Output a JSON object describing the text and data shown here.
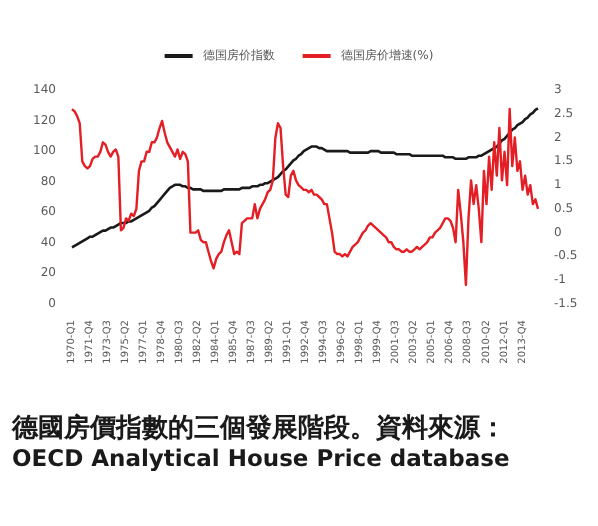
{
  "chart_data": {
    "type": "line",
    "legend": "top",
    "grid": false,
    "marker": "none",
    "line_style": "solid",
    "categories": [
      "1970-Q1",
      null,
      null,
      null,
      null,
      null,
      null,
      "1971-Q4",
      null,
      null,
      null,
      null,
      null,
      null,
      "1973-Q3",
      null,
      null,
      null,
      null,
      null,
      null,
      "1975-Q2",
      null,
      null,
      null,
      null,
      null,
      null,
      "1977-Q1",
      null,
      null,
      null,
      null,
      null,
      null,
      "1978-Q4",
      null,
      null,
      null,
      null,
      null,
      null,
      "1980-Q3",
      null,
      null,
      null,
      null,
      null,
      null,
      "1982-Q2",
      null,
      null,
      null,
      null,
      null,
      null,
      "1984-Q1",
      null,
      null,
      null,
      null,
      null,
      null,
      "1985-Q4",
      null,
      null,
      null,
      null,
      null,
      null,
      "1987-Q3",
      null,
      null,
      null,
      null,
      null,
      null,
      "1989-Q2",
      null,
      null,
      null,
      null,
      null,
      null,
      "1991-Q1",
      null,
      null,
      null,
      null,
      null,
      null,
      "1992-Q4",
      null,
      null,
      null,
      null,
      null,
      null,
      "1994-Q3",
      null,
      null,
      null,
      null,
      null,
      null,
      "1996-Q2",
      null,
      null,
      null,
      null,
      null,
      null,
      "1998-Q1",
      null,
      null,
      null,
      null,
      null,
      null,
      "1999-Q4",
      null,
      null,
      null,
      null,
      null,
      null,
      "2001-Q3",
      null,
      null,
      null,
      null,
      null,
      null,
      "2003-Q2",
      null,
      null,
      null,
      null,
      null,
      null,
      "2005-Q1",
      null,
      null,
      null,
      null,
      null,
      null,
      "2006-Q4",
      null,
      null,
      null,
      null,
      null,
      null,
      "2008-Q3",
      null,
      null,
      null,
      null,
      null,
      null,
      "2010-Q2",
      null,
      null,
      null,
      null,
      null,
      null,
      "2012-Q1",
      null,
      null,
      null,
      null,
      null,
      null,
      "2013-Q4",
      null,
      null,
      null,
      null,
      null,
      null
    ],
    "ylim": [
      0,
      140
    ],
    "yticks": [
      0,
      20,
      40,
      60,
      80,
      100,
      120,
      140
    ],
    "y2lim": [
      -1.5,
      3
    ],
    "y2ticks": [
      -1.5,
      -1,
      -0.5,
      0,
      0.5,
      1,
      1.5,
      2,
      2.5,
      3
    ],
    "series": [
      {
        "name": "德国房价指数",
        "color": "#1a1a1a",
        "values": [
          37,
          38,
          39,
          40,
          41,
          42,
          43,
          44,
          44,
          45,
          46,
          47,
          48,
          48,
          49,
          50,
          50,
          51,
          52,
          53,
          53,
          53,
          54,
          54,
          55,
          56,
          57,
          58,
          59,
          60,
          61,
          63,
          64,
          66,
          68,
          70,
          72,
          74,
          76,
          77,
          78,
          78,
          78,
          77,
          77,
          76,
          76,
          75,
          75,
          75,
          75,
          74,
          74,
          74,
          74,
          74,
          74,
          74,
          74,
          75,
          75,
          75,
          75,
          75,
          75,
          75,
          76,
          76,
          76,
          76,
          77,
          77,
          77,
          78,
          78,
          79,
          79,
          80,
          81,
          82,
          83,
          85,
          87,
          88,
          90,
          92,
          94,
          95,
          97,
          98,
          100,
          101,
          102,
          103,
          103,
          103,
          102,
          102,
          101,
          100,
          100,
          100,
          100,
          100,
          100,
          100,
          100,
          100,
          99,
          99,
          99,
          99,
          99,
          99,
          99,
          99,
          100,
          100,
          100,
          100,
          99,
          99,
          99,
          99,
          99,
          99,
          98,
          98,
          98,
          98,
          98,
          98,
          97,
          97,
          97,
          97,
          97,
          97,
          97,
          97,
          97,
          97,
          97,
          97,
          97,
          96,
          96,
          96,
          96,
          95,
          95,
          95,
          95,
          95,
          96,
          96,
          96,
          96,
          97,
          97,
          98,
          99,
          100,
          101,
          102,
          103,
          105,
          107,
          108,
          110,
          112,
          114,
          115,
          117,
          118,
          119,
          121,
          122,
          124,
          125,
          127,
          128
        ]
      },
      {
        "name": "德国房价增速(%)",
        "color": "#e31e24",
        "axis": "y2",
        "values": [
          2.6,
          2.55,
          2.45,
          2.3,
          1.5,
          1.4,
          1.35,
          1.4,
          1.55,
          1.6,
          1.6,
          1.7,
          1.9,
          1.85,
          1.7,
          1.6,
          1.7,
          1.75,
          1.6,
          0.05,
          0.1,
          0.3,
          0.25,
          0.4,
          0.35,
          0.5,
          1.3,
          1.5,
          1.5,
          1.7,
          1.7,
          1.9,
          1.9,
          2.0,
          2.2,
          2.35,
          2.1,
          1.9,
          1.8,
          1.7,
          1.6,
          1.75,
          1.55,
          1.7,
          1.65,
          1.5,
          0.0,
          0.0,
          0.0,
          0.05,
          -0.15,
          -0.2,
          -0.2,
          -0.4,
          -0.6,
          -0.75,
          -0.55,
          -0.45,
          -0.4,
          -0.2,
          -0.05,
          0.05,
          -0.2,
          -0.45,
          -0.4,
          -0.45,
          0.2,
          0.25,
          0.3,
          0.3,
          0.3,
          0.6,
          0.3,
          0.5,
          0.6,
          0.7,
          0.85,
          0.9,
          1.1,
          2.0,
          2.3,
          2.2,
          1.4,
          0.8,
          0.75,
          1.2,
          1.3,
          1.1,
          1.0,
          0.95,
          0.9,
          0.9,
          0.85,
          0.9,
          0.8,
          0.8,
          0.75,
          0.7,
          0.6,
          0.6,
          0.3,
          0.0,
          -0.4,
          -0.45,
          -0.45,
          -0.5,
          -0.45,
          -0.5,
          -0.4,
          -0.3,
          -0.25,
          -0.2,
          -0.1,
          0.0,
          0.05,
          0.15,
          0.2,
          0.15,
          0.1,
          0.05,
          0.0,
          -0.05,
          -0.1,
          -0.2,
          -0.2,
          -0.3,
          -0.35,
          -0.35,
          -0.4,
          -0.4,
          -0.35,
          -0.4,
          -0.4,
          -0.35,
          -0.3,
          -0.35,
          -0.3,
          -0.25,
          -0.2,
          -0.1,
          -0.1,
          0.0,
          0.05,
          0.1,
          0.2,
          0.3,
          0.3,
          0.25,
          0.1,
          -0.2,
          0.9,
          0.4,
          -0.2,
          -1.1,
          0.3,
          1.1,
          0.6,
          1.0,
          0.5,
          -0.2,
          1.3,
          0.6,
          1.6,
          0.9,
          1.9,
          1.2,
          2.2,
          1.1,
          1.7,
          1.0,
          2.6,
          1.4,
          2.0,
          1.3,
          1.5,
          0.9,
          1.2,
          0.8,
          1.0,
          0.6,
          0.7,
          0.5
        ]
      }
    ],
    "annotations": [
      "德國房價指數的三個發展階段。資料來源：",
      "OECD Analytical House Price database"
    ]
  }
}
